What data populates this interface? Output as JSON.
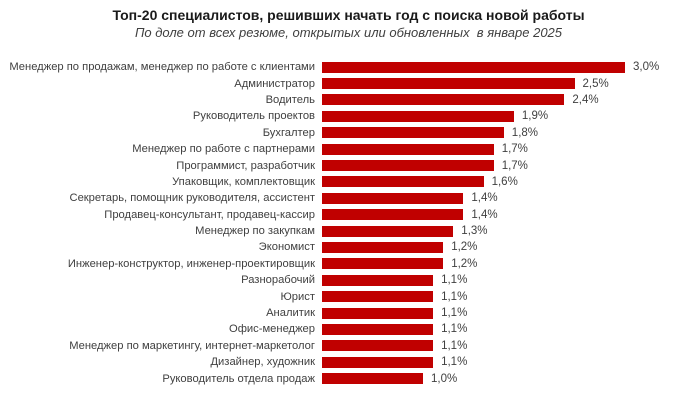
{
  "chart_data": {
    "type": "bar",
    "orientation": "horizontal",
    "title": "Топ-20 специалистов, решивших начать год с поиска новой работы",
    "subtitle": "По доле от всех резюме, открытых или обновленных  в январе 2025",
    "categories": [
      "Менеджер по продажам, менеджер по работе с клиентами",
      "Администратор",
      "Водитель",
      "Руководитель проектов",
      "Бухгалтер",
      "Менеджер по работе с партнерами",
      "Программист, разработчик",
      "Упаковщик, комплектовщик",
      "Секретарь, помощник руководителя, ассистент",
      "Продавец-консультант, продавец-кассир",
      "Менеджер по закупкам",
      "Экономист",
      "Инженер-конструктор, инженер-проектировщик",
      "Разнорабочий",
      "Юрист",
      "Аналитик",
      "Офис-менеджер",
      "Менеджер по маркетингу, интернет-маркетолог",
      "Дизайнер, художник",
      "Руководитель отдела продаж"
    ],
    "values": [
      3.0,
      2.5,
      2.4,
      1.9,
      1.8,
      1.7,
      1.7,
      1.6,
      1.4,
      1.4,
      1.3,
      1.2,
      1.2,
      1.1,
      1.1,
      1.1,
      1.1,
      1.1,
      1.1,
      1.0
    ],
    "value_labels": [
      "3,0%",
      "2,5%",
      "2,4%",
      "1,9%",
      "1,8%",
      "1,7%",
      "1,7%",
      "1,6%",
      "1,4%",
      "1,4%",
      "1,3%",
      "1,2%",
      "1,2%",
      "1,1%",
      "1,1%",
      "1,1%",
      "1,1%",
      "1,1%",
      "1,1%",
      "1,0%"
    ],
    "xlabel": "",
    "ylabel": "",
    "xlim": [
      0,
      3.0
    ],
    "grid": false,
    "legend": false,
    "bar_color": "#c00000",
    "value_label_color": "#404040",
    "category_label_color": "#404040",
    "title_color": "#1a1a1a",
    "subtitle_color": "#404040",
    "background_color": "#ffffff"
  }
}
